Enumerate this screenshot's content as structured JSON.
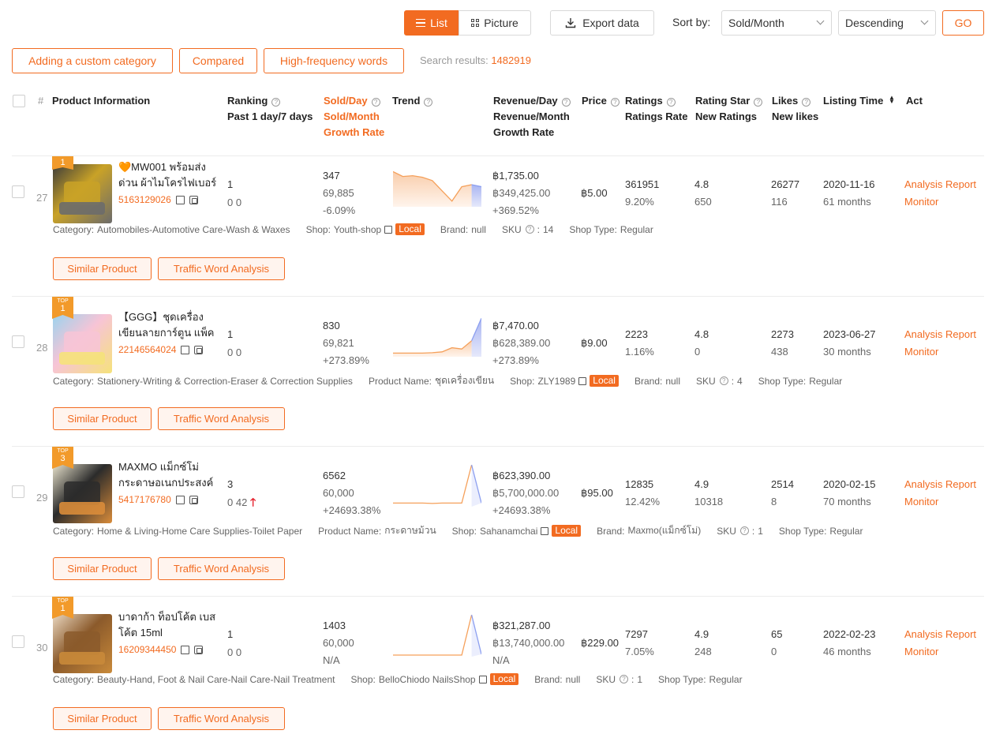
{
  "toolbar": {
    "list_label": "List",
    "picture_label": "Picture",
    "export_label": "Export data",
    "sort_by_label": "Sort by:",
    "sort_field": "Sold/Month",
    "sort_order": "Descending",
    "go_label": "GO"
  },
  "filters": {
    "custom_category": "Adding a custom category",
    "compared": "Compared",
    "high_freq": "High-frequency words",
    "search_results_label": "Search results:",
    "search_results_count": "1482919"
  },
  "columns": {
    "num": "#",
    "product_info": "Product Information",
    "ranking": "Ranking",
    "ranking_sub": "Past 1 day/7 days",
    "sold_day": "Sold/Day",
    "sold_month": "Sold/Month",
    "growth_rate": "Growth Rate",
    "trend": "Trend",
    "revenue_day": "Revenue/Day",
    "revenue_month": "Revenue/Month",
    "rev_growth": "Growth Rate",
    "price": "Price",
    "ratings": "Ratings",
    "ratings_rate": "Ratings Rate",
    "rating_star": "Rating Star",
    "new_ratings": "New Ratings",
    "likes": "Likes",
    "new_likes": "New likes",
    "listing_time": "Listing Time",
    "act": "Act"
  },
  "buttons": {
    "similar": "Similar Product",
    "traffic": "Traffic Word Analysis",
    "analysis": "Analysis Report",
    "monitor": "Monitor"
  },
  "colors": {
    "accent": "#f26b21",
    "trend_line": "#f5a05a",
    "trend_tail": "#8c9ff0"
  },
  "rows": [
    {
      "num": "27",
      "badge_top": "",
      "badge_rank": "1",
      "name": "🧡MW001 พร้อมส่งด่วน ผ้าไมโครไฟเบอร์ 3...",
      "id": "5163129026",
      "rank_day": "1",
      "rank_week": "0  0",
      "rank_up": "",
      "sold_day": "347",
      "sold_month": "69,885",
      "growth": "-6.09%",
      "rev_day": "฿1,735.00",
      "rev_month": "฿349,425.00",
      "rev_growth": "+369.52%",
      "price": "฿5.00",
      "ratings": "361951",
      "ratings_rate": "9.20%",
      "star": "4.8",
      "new_ratings": "650",
      "likes": "26277",
      "new_likes": "116",
      "listing_date": "2020-11-16",
      "listing_age": "61 months",
      "trend": [
        0.82,
        0.7,
        0.72,
        0.68,
        0.6,
        0.35,
        0.1,
        0.45,
        0.5,
        0.45
      ],
      "trend_type": "area",
      "meta": [
        {
          "label": "Category:",
          "value": "Automobiles-Automotive Care-Wash & Waxes"
        },
        {
          "label": "Shop:",
          "value": "Youth-shop",
          "link": true,
          "local": "Local"
        },
        {
          "label": "Brand:",
          "value": "null"
        },
        {
          "label": "SKU",
          "value": "14",
          "help": true
        },
        {
          "label": "Shop Type:",
          "value": "Regular"
        }
      ]
    },
    {
      "num": "28",
      "badge_top": "TOP",
      "badge_rank": "1",
      "name": "【GGG】ชุดเครื่องเขียนลายการ์ตูน แพ็ค 5 ชิ้...",
      "id": "22146564024",
      "rank_day": "1",
      "rank_week": "0  0",
      "rank_up": "",
      "sold_day": "830",
      "sold_month": "69,821",
      "growth": "+273.89%",
      "rev_day": "฿7,470.00",
      "rev_month": "฿628,389.00",
      "rev_growth": "+273.89%",
      "price": "฿9.00",
      "ratings": "2223",
      "ratings_rate": "1.16%",
      "star": "4.8",
      "new_ratings": "0",
      "likes": "2273",
      "new_likes": "438",
      "listing_date": "2023-06-27",
      "listing_age": "30 months",
      "trend": [
        0.05,
        0.05,
        0.05,
        0.05,
        0.06,
        0.08,
        0.18,
        0.15,
        0.35,
        0.9
      ],
      "trend_type": "area",
      "meta": [
        {
          "label": "Category:",
          "value": "Stationery-Writing & Correction-Eraser & Correction Supplies"
        },
        {
          "label": "Product Name:",
          "value": "ชุดเครื่องเขียน"
        },
        {
          "label": "Shop:",
          "value": "ZLY1989",
          "link": true,
          "local": "Local"
        },
        {
          "label": "Brand:",
          "value": "null"
        },
        {
          "label": "SKU",
          "value": "4",
          "help": true
        },
        {
          "label": "Shop Type:",
          "value": "Regular"
        }
      ]
    },
    {
      "num": "29",
      "badge_top": "TOP",
      "badge_rank": "3",
      "name": "MAXMO แม็กซ์โม่ กระดาษอเนกประสงค์ 6 ม้...",
      "id": "5417176780",
      "rank_day": "3",
      "rank_week": "0  42",
      "rank_up": "🡑",
      "sold_day": "6562",
      "sold_month": "60,000",
      "growth": "+24693.38%",
      "rev_day": "฿623,390.00",
      "rev_month": "฿5,700,000.00",
      "rev_growth": "+24693.38%",
      "price": "฿95.00",
      "ratings": "12835",
      "ratings_rate": "12.42%",
      "star": "4.9",
      "new_ratings": "10318",
      "likes": "2514",
      "new_likes": "8",
      "listing_date": "2020-02-15",
      "listing_age": "70 months",
      "trend": [
        0.05,
        0.05,
        0.05,
        0.05,
        0.04,
        0.05,
        0.05,
        0.05,
        0.98,
        0.05
      ],
      "trend_type": "line",
      "meta": [
        {
          "label": "Category:",
          "value": "Home & Living-Home Care Supplies-Toilet Paper"
        },
        {
          "label": "Product Name:",
          "value": "กระดาษม้วน"
        },
        {
          "label": "Shop:",
          "value": "Sahanamchai",
          "link": true,
          "local": "Local"
        },
        {
          "label": "Brand:",
          "value": "Maxmo(แม็กซ์โม่)"
        },
        {
          "label": "SKU",
          "value": "1",
          "help": true
        },
        {
          "label": "Shop Type:",
          "value": "Regular"
        }
      ]
    },
    {
      "num": "30",
      "badge_top": "TOP",
      "badge_rank": "1",
      "name": "บาดาก้า ท็อปโค้ต เบสโค้ต 15ml",
      "id": "16209344450",
      "rank_day": "1",
      "rank_week": "0  0",
      "rank_up": "",
      "sold_day": "1403",
      "sold_month": "60,000",
      "growth": "N/A",
      "rev_day": "฿321,287.00",
      "rev_month": "฿13,740,000.00",
      "rev_growth": "N/A",
      "price": "฿229.00",
      "ratings": "7297",
      "ratings_rate": "7.05%",
      "star": "4.9",
      "new_ratings": "248",
      "likes": "65",
      "new_likes": "0",
      "listing_date": "2022-02-23",
      "listing_age": "46 months",
      "trend": [
        0.0,
        0.0,
        0.0,
        0.0,
        0.0,
        0.0,
        0.0,
        0.0,
        0.98,
        0.02
      ],
      "trend_type": "line",
      "meta": [
        {
          "label": "Category:",
          "value": "Beauty-Hand, Foot & Nail Care-Nail Care-Nail Treatment"
        },
        {
          "label": "Shop:",
          "value": "BelloChiodo NailsShop",
          "link": true,
          "local": "Local"
        },
        {
          "label": "Brand:",
          "value": "null"
        },
        {
          "label": "SKU",
          "value": "1",
          "help": true
        },
        {
          "label": "Shop Type:",
          "value": "Regular"
        }
      ]
    }
  ]
}
